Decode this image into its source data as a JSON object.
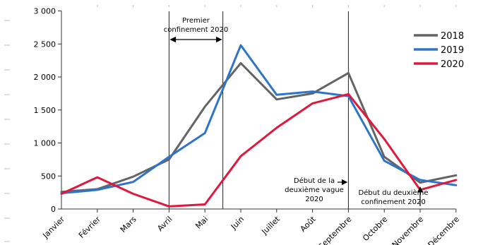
{
  "chart_data": {
    "type": "line",
    "categories": [
      "Janvier",
      "Février",
      "Mars",
      "Avril",
      "Mai",
      "Juin",
      "Juillet",
      "Août",
      "Septembre",
      "Octobre",
      "Novembre",
      "Décembre"
    ],
    "ylim": [
      0,
      3000
    ],
    "yticks": [
      0,
      500,
      1000,
      1500,
      2000,
      2500,
      3000
    ],
    "ytick_labels": [
      "0",
      "500",
      "1 000",
      "1 500",
      "2 000",
      "2 500",
      "3 000"
    ],
    "grid": false,
    "legend_position": "top-right",
    "series": [
      {
        "name": "2018",
        "color": "#646464",
        "values": [
          260,
          300,
          490,
          750,
          1550,
          2210,
          1660,
          1750,
          2060,
          790,
          400,
          510
        ]
      },
      {
        "name": "2019",
        "color": "#2e75c9",
        "values": [
          240,
          290,
          410,
          790,
          1150,
          2480,
          1730,
          1780,
          1710,
          730,
          440,
          360
        ]
      },
      {
        "name": "2020",
        "color": "#e0193c",
        "values": [
          230,
          480,
          230,
          40,
          70,
          800,
          1230,
          1600,
          1740,
          1060,
          290,
          440
        ]
      }
    ],
    "annotations": {
      "premier": {
        "lines": [
          "Premier",
          "confinement 2020"
        ],
        "x_start": "Avril",
        "x_end": "Mai"
      },
      "deuxieme_vague": {
        "lines": [
          "Début de la",
          "deuxième vague",
          "2020"
        ],
        "at": "Septembre"
      },
      "deuxieme_confinement": {
        "lines": [
          "Début du deuxième",
          "confinement 2020"
        ],
        "at": "Novembre"
      }
    }
  }
}
